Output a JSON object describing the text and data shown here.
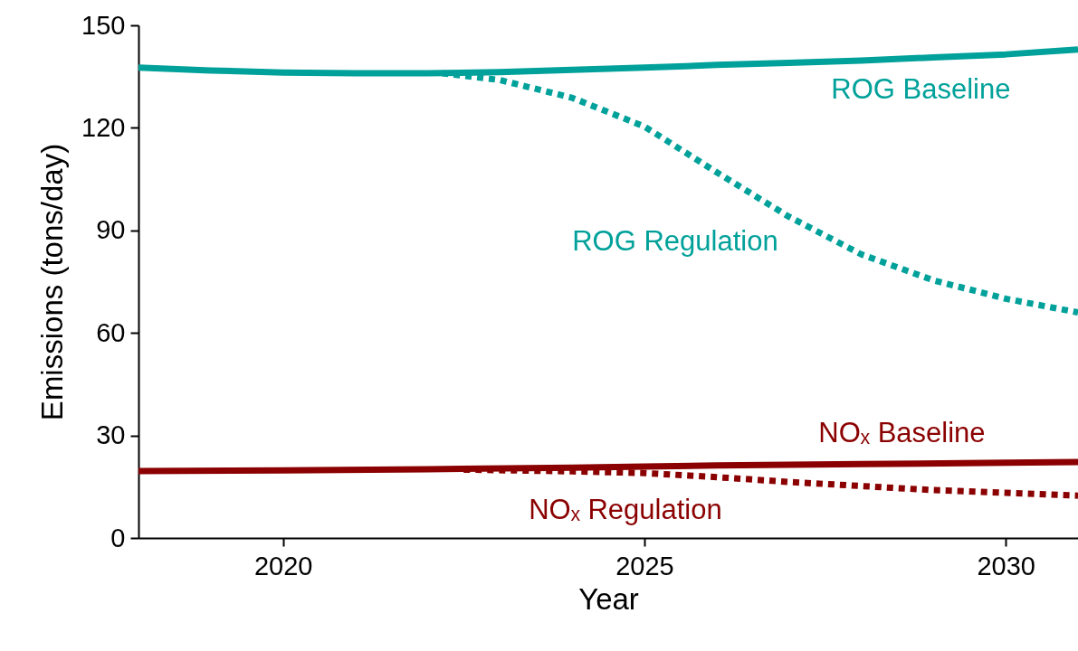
{
  "chart_data": {
    "type": "line",
    "xlabel": "Year",
    "ylabel": "Emissions (tons/day)",
    "xlim": [
      2018,
      2031
    ],
    "xticks": [
      2020,
      2025,
      2030
    ],
    "ylim": [
      0,
      150
    ],
    "yticks": [
      0,
      30,
      60,
      90,
      120,
      150
    ],
    "series": [
      {
        "name": "ROG Baseline",
        "color": "#00a19a",
        "line_style": "solid",
        "x": [
          2018,
          2019,
          2020,
          2021,
          2022,
          2023,
          2024,
          2025,
          2026,
          2027,
          2028,
          2029,
          2030,
          2031
        ],
        "values": [
          137.6,
          136.8,
          136.2,
          136,
          136,
          136.3,
          137,
          137.6,
          138.4,
          139,
          139.7,
          140.6,
          141.5,
          142.9
        ]
      },
      {
        "name": "ROG Regulation",
        "color": "#00a19a",
        "line_style": "dotted",
        "x": [
          2022.2,
          2023,
          2024,
          2025,
          2026,
          2027,
          2028,
          2029,
          2030,
          2031
        ],
        "values": [
          136,
          134,
          128.8,
          120.4,
          107,
          94,
          83,
          75.4,
          70,
          66
        ]
      },
      {
        "name": "NOₓ Baseline",
        "color": "#8b0000",
        "line_style": "solid",
        "x": [
          2018,
          2020,
          2022,
          2024,
          2025,
          2026,
          2028,
          2030,
          2031
        ],
        "values": [
          19.6,
          19.8,
          20.1,
          20.6,
          20.9,
          21.2,
          21.6,
          22,
          22.2
        ]
      },
      {
        "name": "NOₓ Regulation",
        "color": "#8b0000",
        "line_style": "dotted",
        "x": [
          2022.5,
          2024,
          2025,
          2026,
          2027,
          2028,
          2029,
          2030,
          2031
        ],
        "values": [
          20,
          19.5,
          19,
          17.8,
          16.4,
          15.2,
          14,
          13.2,
          12.4
        ]
      }
    ]
  }
}
